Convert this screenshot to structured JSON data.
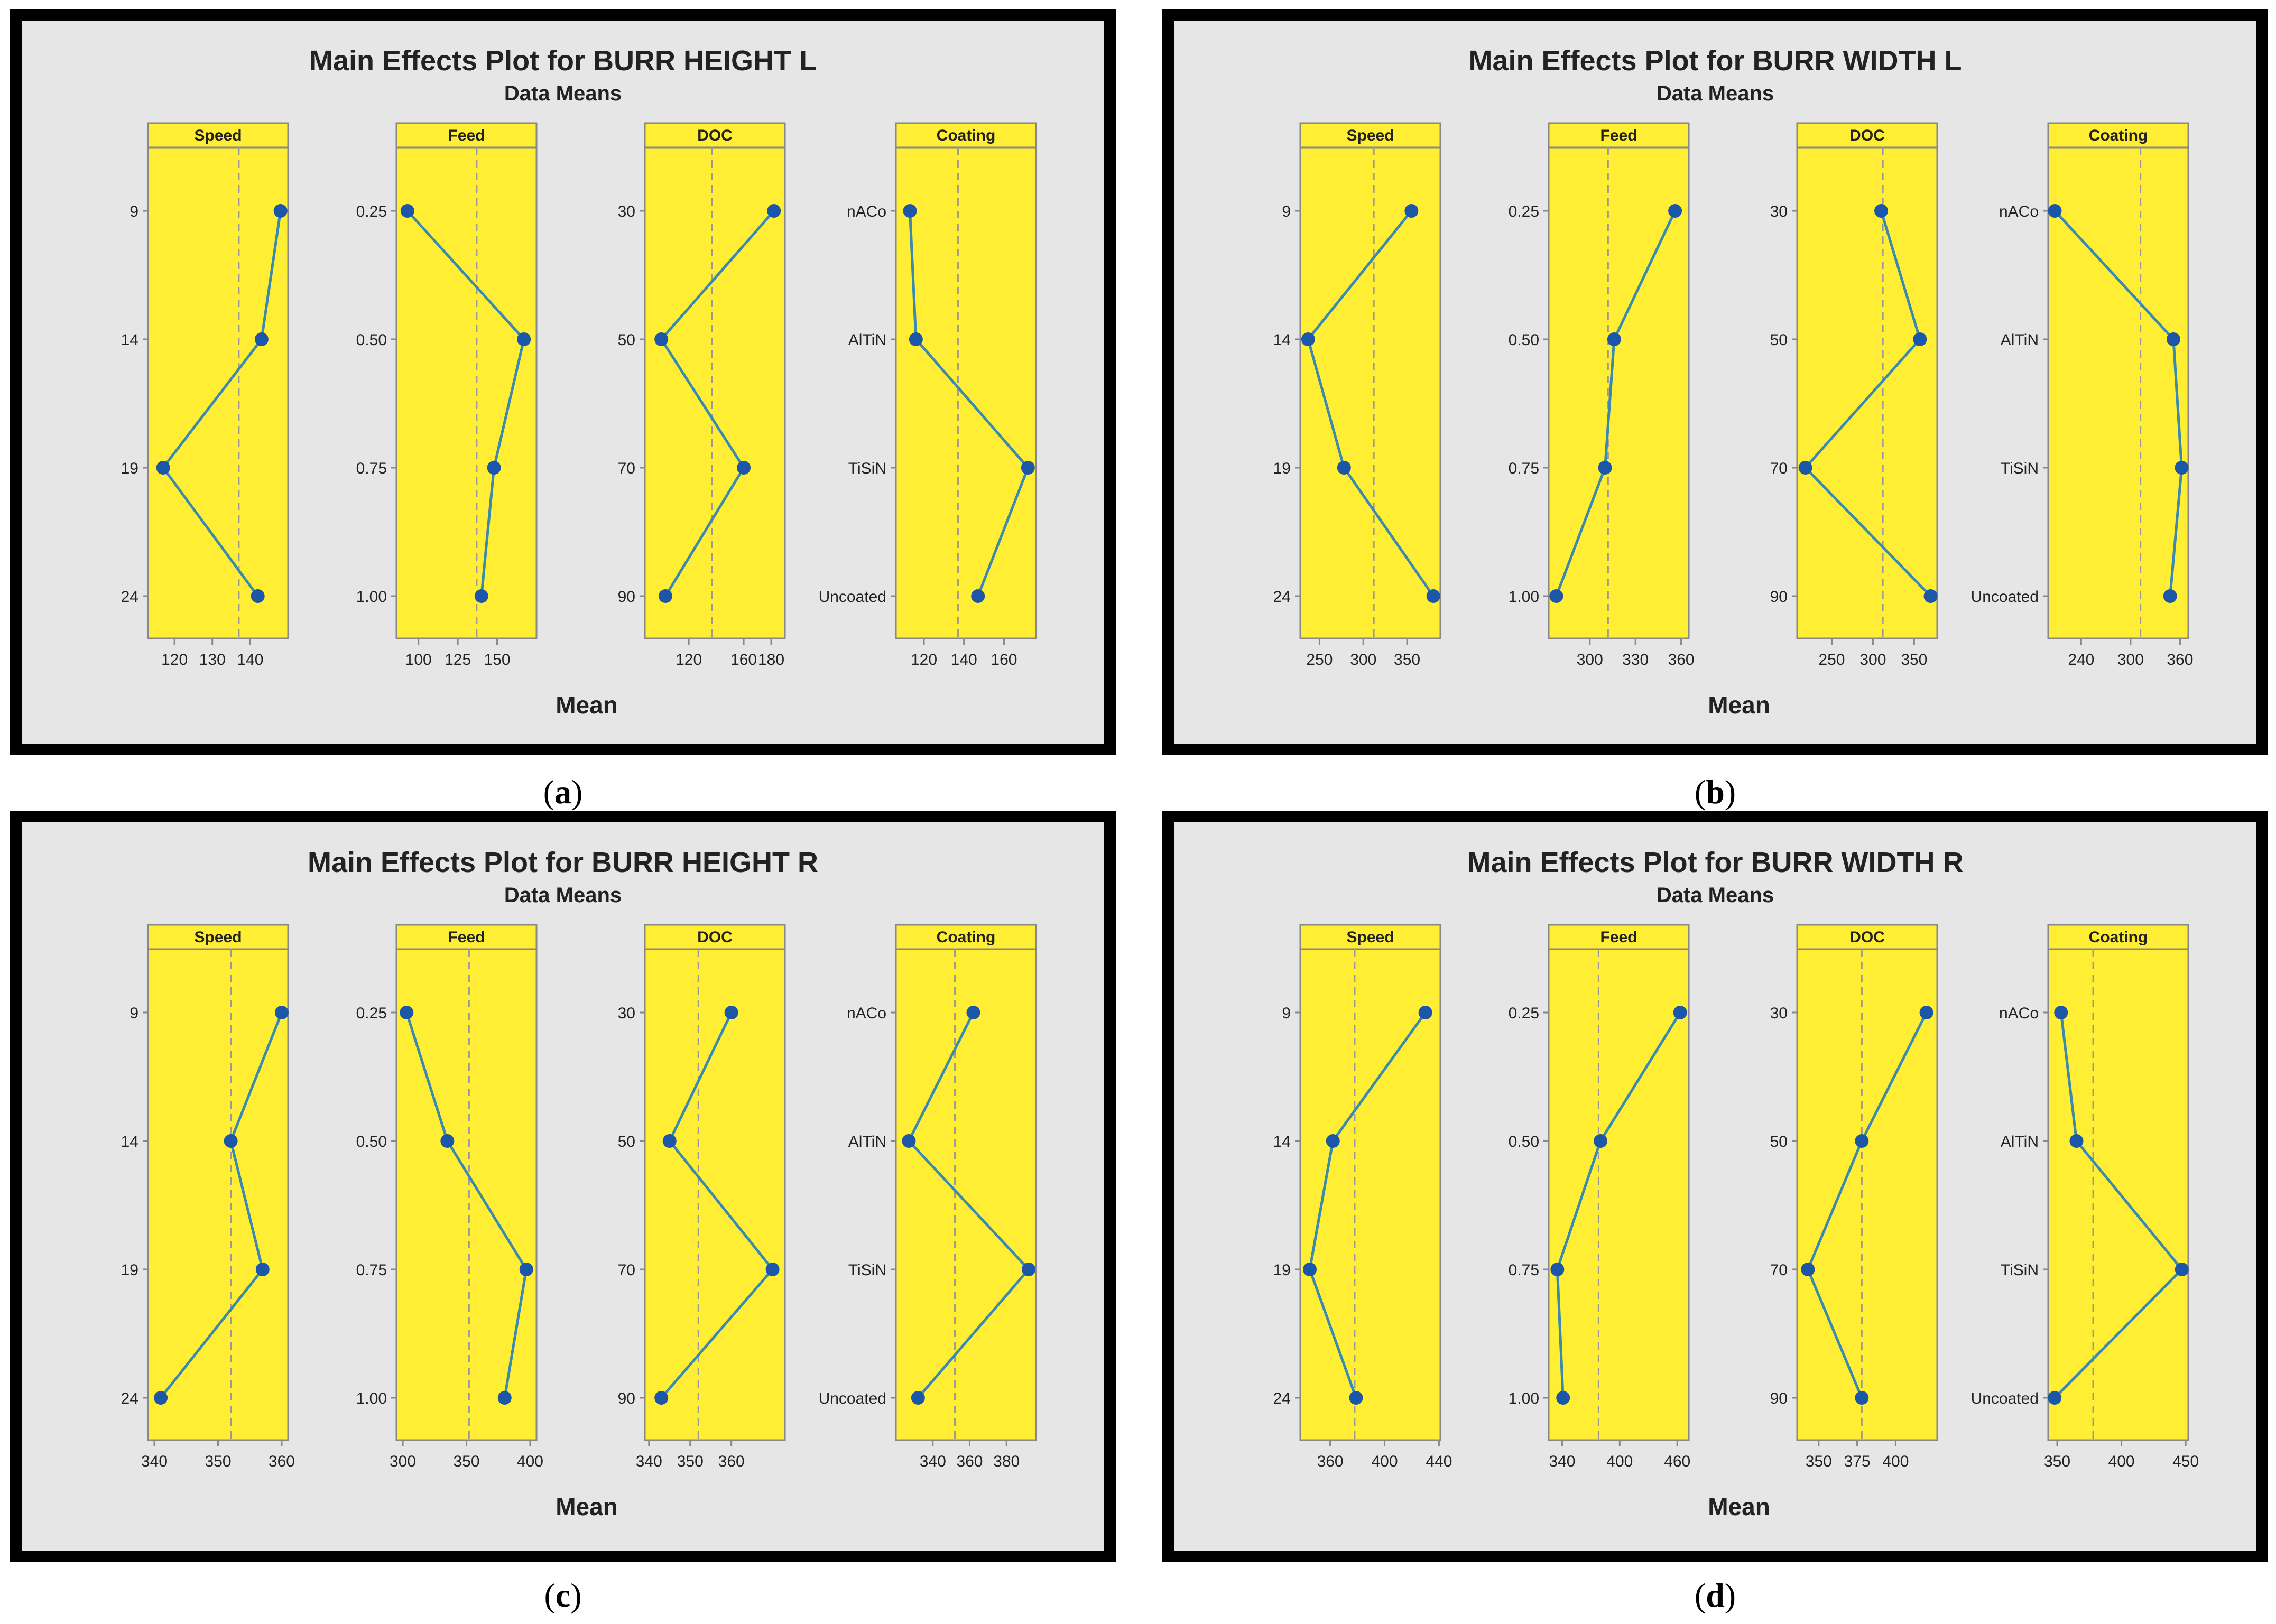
{
  "colors": {
    "frame": "#000000",
    "background": "#e6e6e6",
    "panel": "#ffee33",
    "strip": "#ffee33",
    "line": "#3a8ab0",
    "marker": "#1c56a8",
    "refline": "#999999",
    "axis": "#888888",
    "text": "#222222"
  },
  "chart_data": [
    {
      "type": "line",
      "caption_letter": "a",
      "title": "Main Effects Plot for BURR HEIGHT L",
      "subtitle": "Data Means",
      "xlabel": "Mean",
      "overall_mean": 137,
      "factors": [
        {
          "name": "Speed",
          "levels": [
            "9",
            "14",
            "19",
            "24"
          ],
          "means": [
            148,
            143,
            117,
            142
          ],
          "xlim": [
            113,
            150
          ],
          "xticks": [
            120,
            130,
            140
          ],
          "xtick_labels": [
            "120",
            "130",
            "140"
          ]
        },
        {
          "name": "Feed",
          "levels": [
            "0.25",
            "0.50",
            "0.75",
            "1.00"
          ],
          "means": [
            93,
            167,
            148,
            140
          ],
          "xlim": [
            86,
            175
          ],
          "xticks": [
            100,
            125,
            150
          ],
          "xtick_labels": [
            "100",
            "125",
            "150"
          ]
        },
        {
          "name": "DOC",
          "levels": [
            "30",
            "50",
            "70",
            "90"
          ],
          "means": [
            182,
            100,
            160,
            103
          ],
          "xlim": [
            88,
            190
          ],
          "xticks": [
            120,
            160,
            180
          ],
          "xtick_labels": [
            "120",
            "160",
            "180"
          ]
        },
        {
          "name": "Coating",
          "levels": [
            "nACo",
            "AlTiN",
            "TiSiN",
            "Uncoated"
          ],
          "means": [
            113,
            116,
            172,
            147
          ],
          "xlim": [
            106,
            176
          ],
          "xticks": [
            120,
            140,
            160
          ],
          "xtick_labels": [
            "120",
            "140",
            "160"
          ]
        }
      ]
    },
    {
      "type": "line",
      "caption_letter": "b",
      "title": "Main Effects Plot for BURR WIDTH L",
      "subtitle": "Data Means",
      "xlabel": "Mean",
      "overall_mean": 312,
      "factors": [
        {
          "name": "Speed",
          "levels": [
            "9",
            "14",
            "19",
            "24"
          ],
          "means": [
            355,
            237,
            278,
            380
          ],
          "xlim": [
            228,
            388
          ],
          "xticks": [
            250,
            300,
            350
          ],
          "xtick_labels": [
            "250",
            "300",
            "350"
          ]
        },
        {
          "name": "Feed",
          "levels": [
            "0.25",
            "0.50",
            "0.75",
            "1.00"
          ],
          "means": [
            356,
            316,
            310,
            278
          ],
          "xlim": [
            273,
            365
          ],
          "xticks": [
            300,
            330,
            360
          ],
          "xtick_labels": [
            "300",
            "330",
            "360"
          ]
        },
        {
          "name": "DOC",
          "levels": [
            "30",
            "50",
            "70",
            "90"
          ],
          "means": [
            310,
            357,
            218,
            370
          ],
          "xlim": [
            208,
            378
          ],
          "xticks": [
            250,
            300,
            350
          ],
          "xtick_labels": [
            "250",
            "300",
            "350"
          ]
        },
        {
          "name": "Coating",
          "levels": [
            "nACo",
            "AlTiN",
            "TiSiN",
            "Uncoated"
          ],
          "means": [
            208,
            352,
            362,
            348
          ],
          "xlim": [
            200,
            370
          ],
          "xticks": [
            240,
            300,
            360
          ],
          "xtick_labels": [
            "240",
            "300",
            "360"
          ]
        }
      ]
    },
    {
      "type": "line",
      "caption_letter": "c",
      "title": "Main Effects Plot for BURR HEIGHT R",
      "subtitle": "Data Means",
      "xlabel": "Mean",
      "overall_mean": 352,
      "factors": [
        {
          "name": "Speed",
          "levels": [
            "9",
            "14",
            "19",
            "24"
          ],
          "means": [
            360,
            352,
            357,
            341
          ],
          "xlim": [
            339,
            361
          ],
          "xticks": [
            340,
            350,
            360
          ],
          "xtick_labels": [
            "340",
            "350",
            "360"
          ]
        },
        {
          "name": "Feed",
          "levels": [
            "0.25",
            "0.50",
            "0.75",
            "1.00"
          ],
          "means": [
            303,
            335,
            397,
            380
          ],
          "xlim": [
            295,
            405
          ],
          "xticks": [
            300,
            350,
            400
          ],
          "xtick_labels": [
            "300",
            "350",
            "400"
          ]
        },
        {
          "name": "DOC",
          "levels": [
            "30",
            "50",
            "70",
            "90"
          ],
          "means": [
            360,
            345,
            370,
            343
          ],
          "xlim": [
            339,
            373
          ],
          "xticks": [
            340,
            350,
            360
          ],
          "xtick_labels": [
            "340",
            "350",
            "360"
          ]
        },
        {
          "name": "Coating",
          "levels": [
            "nACo",
            "AlTiN",
            "TiSiN",
            "Uncoated"
          ],
          "means": [
            362,
            327,
            392,
            332
          ],
          "xlim": [
            320,
            396
          ],
          "xticks": [
            340,
            360,
            380
          ],
          "xtick_labels": [
            "340",
            "360",
            "380"
          ]
        }
      ]
    },
    {
      "type": "line",
      "caption_letter": "d",
      "title": "Main Effects Plot for BURR WIDTH R",
      "subtitle": "Data Means",
      "xlabel": "Mean",
      "overall_mean": 378,
      "factors": [
        {
          "name": "Speed",
          "levels": [
            "9",
            "14",
            "19",
            "24"
          ],
          "means": [
            430,
            362,
            345,
            379
          ],
          "xlim": [
            338,
            441
          ],
          "xticks": [
            360,
            400,
            440
          ],
          "xtick_labels": [
            "360",
            "400",
            "440"
          ]
        },
        {
          "name": "Feed",
          "levels": [
            "0.25",
            "0.50",
            "0.75",
            "1.00"
          ],
          "means": [
            463,
            380,
            335,
            341
          ],
          "xlim": [
            326,
            472
          ],
          "xticks": [
            340,
            400,
            460
          ],
          "xtick_labels": [
            "340",
            "400",
            "460"
          ]
        },
        {
          "name": "DOC",
          "levels": [
            "30",
            "50",
            "70",
            "90"
          ],
          "means": [
            420,
            378,
            343,
            378
          ],
          "xlim": [
            336,
            427
          ],
          "xticks": [
            350,
            375,
            400
          ],
          "xtick_labels": [
            "350",
            "375",
            "400"
          ]
        },
        {
          "name": "Coating",
          "levels": [
            "nACo",
            "AlTiN",
            "TiSiN",
            "Uncoated"
          ],
          "means": [
            353,
            365,
            447,
            348
          ],
          "xlim": [
            343,
            452
          ],
          "xticks": [
            350,
            400,
            450
          ],
          "xtick_labels": [
            "350",
            "400",
            "450"
          ]
        }
      ]
    }
  ]
}
